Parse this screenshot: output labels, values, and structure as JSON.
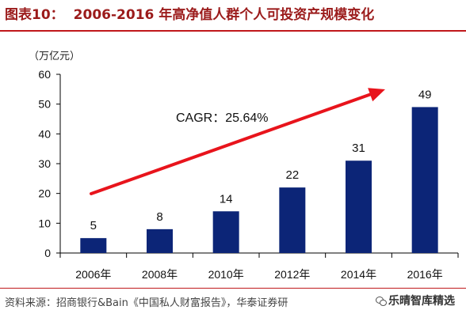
{
  "figure": {
    "label": "图表10：",
    "title": "2006-2016 年高净值人群个人可投资产规模变化",
    "unit": "（万亿元）",
    "source": "资料来源：招商银行&Bain《中国私人财富报告》，华泰证券研",
    "watermark": "乐晴智库精选"
  },
  "colors": {
    "bar": "#0c2577",
    "arrow": "#e8141c",
    "rule": "#c0181b",
    "title": "#9b1b1b"
  },
  "chart_data": {
    "type": "bar",
    "categories": [
      "2006年",
      "2008年",
      "2010年",
      "2012年",
      "2014年",
      "2016年"
    ],
    "values": [
      5,
      8,
      14,
      22,
      31,
      49
    ],
    "data_labels": [
      "5",
      "8",
      "14",
      "22",
      "31",
      "49"
    ],
    "ylim": [
      0,
      60
    ],
    "yticks": [
      0,
      10,
      20,
      30,
      40,
      50,
      60
    ],
    "ytick_labels": [
      "0",
      "10",
      "20",
      "30",
      "40",
      "50",
      "60"
    ],
    "annotation": "CAGR：25.64%",
    "grid": false,
    "legend": "none"
  }
}
